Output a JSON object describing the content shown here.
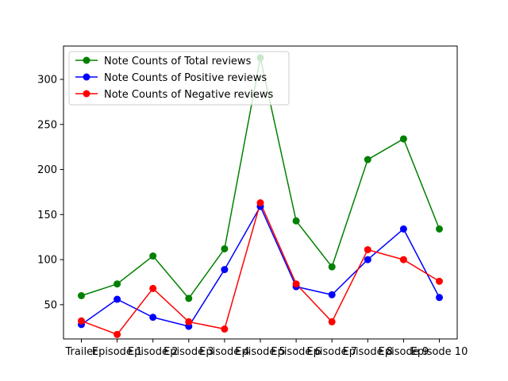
{
  "chart_data": {
    "type": "line",
    "categories": [
      "Trailer",
      "Episode 1",
      "Episode 2",
      "Episode 3",
      "Episode 4",
      "Episode 5",
      "Episode 6",
      "Episode 7",
      "Episode 8",
      "Episode 9",
      "Episode 10"
    ],
    "series": [
      {
        "name": "Note Counts of Total reviews",
        "color": "#008000",
        "values": [
          60,
          73,
          104,
          57,
          112,
          324,
          143,
          92,
          211,
          234,
          134
        ]
      },
      {
        "name": "Note Counts of Positive reviews",
        "color": "#0000ff",
        "values": [
          28,
          56,
          36,
          26,
          89,
          159,
          70,
          61,
          100,
          134,
          58
        ]
      },
      {
        "name": "Note Counts of Negative reviews",
        "color": "#ff0000",
        "values": [
          32,
          17,
          68,
          31,
          23,
          163,
          73,
          31,
          111,
          100,
          76
        ]
      }
    ],
    "title": "",
    "xlabel": "",
    "ylabel": "",
    "ylim": [
      12,
      337
    ],
    "yticks": [
      50,
      100,
      150,
      200,
      250,
      300
    ],
    "grid": false,
    "legend_position": "top-left"
  }
}
